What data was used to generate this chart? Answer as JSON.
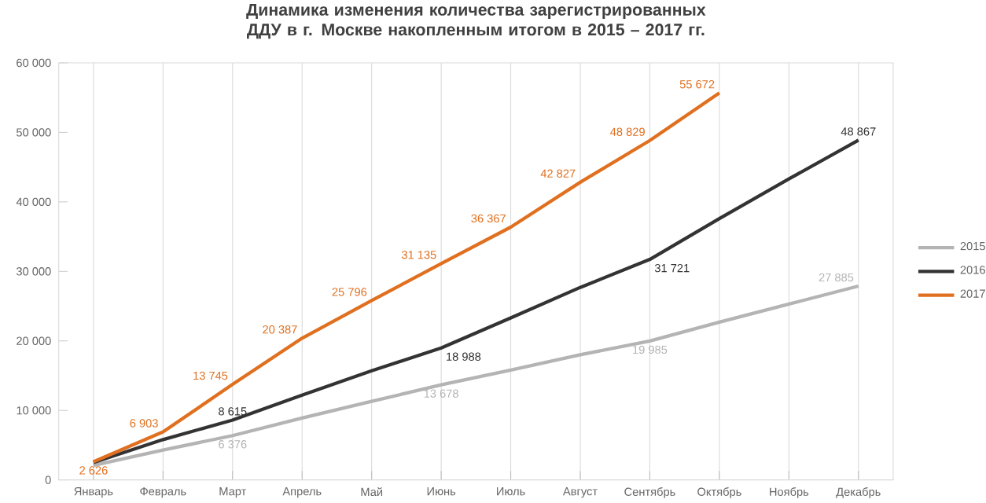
{
  "chart_data": {
    "type": "line",
    "title": "Динамика изменения количества зарегистрированных ДДУ в г. Москве накопленным итогом в 2015 – 2017 гг.",
    "categories": [
      "Январь",
      "Февраль",
      "Март",
      "Апрель",
      "Май",
      "Июнь",
      "Июль",
      "Август",
      "Сентябрь",
      "Октябрь",
      "Ноябрь",
      "Декабрь"
    ],
    "series": [
      {
        "name": "2015",
        "color": "#b4b4b4",
        "values": [
          2100,
          4300,
          6376,
          8900,
          11300,
          13678,
          15800,
          18000,
          19985,
          22700,
          25300,
          27885
        ],
        "value_labels": [
          null,
          null,
          "6 376",
          null,
          null,
          "13 678",
          null,
          null,
          "19 985",
          null,
          null,
          "27 885"
        ]
      },
      {
        "name": "2016",
        "color": "#333333",
        "values": [
          2500,
          5800,
          8615,
          12200,
          15700,
          18988,
          23300,
          27700,
          31721,
          37600,
          43300,
          48867
        ],
        "value_labels": [
          null,
          null,
          "8 615",
          null,
          null,
          "18 988",
          null,
          null,
          "31 721",
          null,
          null,
          "48 867"
        ]
      },
      {
        "name": "2017",
        "color": "#e07020",
        "values": [
          2626,
          6903,
          13745,
          20387,
          25796,
          31135,
          36367,
          42827,
          48829,
          55672,
          null,
          null
        ],
        "value_labels": [
          "2 626",
          "6 903",
          "13 745",
          "20 387",
          "25 796",
          "31 135",
          "36 367",
          "42 827",
          "48 829",
          "55 672",
          null,
          null
        ]
      }
    ],
    "ylim": [
      0,
      60000
    ],
    "yticks": [
      {
        "value": 0,
        "label": "0"
      },
      {
        "value": 10000,
        "label": "10 000"
      },
      {
        "value": 20000,
        "label": "20 000"
      },
      {
        "value": 30000,
        "label": "30 000"
      },
      {
        "value": 40000,
        "label": "40 000"
      },
      {
        "value": 50000,
        "label": "50 000"
      },
      {
        "value": 60000,
        "label": "60 000"
      }
    ],
    "grid": "x",
    "legend": "right",
    "marker": "none",
    "line_style": "solid"
  }
}
